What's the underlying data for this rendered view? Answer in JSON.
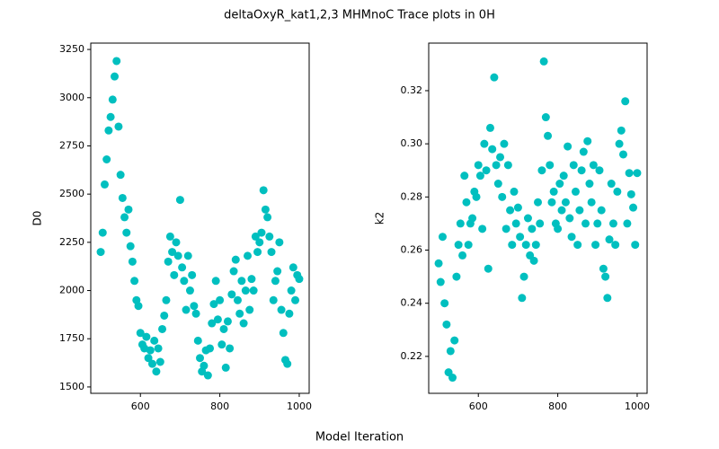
{
  "title": "deltaOxyR_kat1,2,3 MHMnoC Trace plots in 0H",
  "xlabel": "Model Iteration",
  "chart_data": [
    {
      "type": "scatter",
      "ylabel": "D0",
      "color": "#00bfbf",
      "xlim": [
        475,
        1025
      ],
      "ylim": [
        1467,
        3283
      ],
      "xticks": [
        600,
        800,
        1000
      ],
      "yticks": [
        1500,
        1750,
        2000,
        2250,
        2500,
        2750,
        3000,
        3250
      ],
      "x": [
        500,
        505,
        510,
        515,
        520,
        525,
        530,
        535,
        540,
        545,
        550,
        555,
        560,
        565,
        570,
        575,
        580,
        585,
        590,
        595,
        600,
        605,
        610,
        615,
        620,
        625,
        630,
        635,
        640,
        645,
        650,
        655,
        660,
        665,
        670,
        675,
        680,
        685,
        690,
        695,
        700,
        705,
        710,
        715,
        720,
        725,
        730,
        735,
        740,
        745,
        750,
        755,
        760,
        765,
        770,
        775,
        780,
        785,
        790,
        795,
        800,
        805,
        810,
        815,
        820,
        825,
        830,
        835,
        840,
        845,
        850,
        855,
        860,
        865,
        870,
        875,
        880,
        885,
        890,
        895,
        900,
        905,
        910,
        915,
        920,
        925,
        930,
        935,
        940,
        945,
        950,
        955,
        960,
        965,
        970,
        975,
        980,
        985,
        990,
        995,
        1000
      ],
      "values": [
        2200,
        2300,
        2550,
        2680,
        2830,
        2900,
        2990,
        3110,
        3190,
        2850,
        2600,
        2480,
        2380,
        2300,
        2420,
        2230,
        2150,
        2050,
        1950,
        1920,
        1780,
        1720,
        1700,
        1760,
        1650,
        1690,
        1620,
        1740,
        1580,
        1700,
        1630,
        1800,
        1870,
        1950,
        2150,
        2280,
        2200,
        2080,
        2250,
        2180,
        2470,
        2120,
        2050,
        1900,
        2180,
        2000,
        2080,
        1920,
        1880,
        1740,
        1650,
        1580,
        1610,
        1690,
        1560,
        1700,
        1830,
        1930,
        2050,
        1850,
        1950,
        1720,
        1800,
        1600,
        1840,
        1700,
        1980,
        2100,
        2160,
        1950,
        1880,
        2050,
        1830,
        2000,
        2180,
        1900,
        2060,
        2000,
        2280,
        2200,
        2250,
        2300,
        2520,
        2420,
        2380,
        2280,
        2200,
        1950,
        2050,
        2100,
        2250,
        1900,
        1780,
        1640,
        1620,
        1880,
        2000,
        2120,
        1950,
        2080,
        2060
      ]
    },
    {
      "type": "scatter",
      "ylabel": "k2",
      "color": "#00bfbf",
      "xlim": [
        475,
        1025
      ],
      "ylim": [
        0.2061,
        0.3379
      ],
      "xticks": [
        600,
        800,
        1000
      ],
      "yticks": [
        0.22,
        0.24,
        0.26,
        0.28,
        {
          "value": 0.3,
          "label": "0.30"
        },
        0.32
      ],
      "x": [
        500,
        505,
        510,
        515,
        520,
        525,
        530,
        535,
        540,
        545,
        550,
        555,
        560,
        565,
        570,
        575,
        580,
        585,
        590,
        595,
        600,
        605,
        610,
        615,
        620,
        625,
        630,
        635,
        640,
        645,
        650,
        655,
        660,
        665,
        670,
        675,
        680,
        685,
        690,
        695,
        700,
        705,
        710,
        715,
        720,
        725,
        730,
        735,
        740,
        745,
        750,
        755,
        760,
        765,
        770,
        775,
        780,
        785,
        790,
        795,
        800,
        805,
        810,
        815,
        820,
        825,
        830,
        835,
        840,
        845,
        850,
        855,
        860,
        865,
        870,
        875,
        880,
        885,
        890,
        895,
        900,
        905,
        910,
        915,
        920,
        925,
        930,
        935,
        940,
        945,
        950,
        955,
        960,
        965,
        970,
        975,
        980,
        985,
        990,
        995,
        1000
      ],
      "values": [
        0.255,
        0.248,
        0.265,
        0.24,
        0.232,
        0.214,
        0.222,
        0.212,
        0.226,
        0.25,
        0.262,
        0.27,
        0.258,
        0.288,
        0.278,
        0.262,
        0.27,
        0.272,
        0.282,
        0.28,
        0.292,
        0.288,
        0.268,
        0.3,
        0.29,
        0.253,
        0.306,
        0.298,
        0.325,
        0.292,
        0.285,
        0.295,
        0.28,
        0.3,
        0.268,
        0.292,
        0.275,
        0.262,
        0.282,
        0.27,
        0.276,
        0.265,
        0.242,
        0.25,
        0.262,
        0.272,
        0.258,
        0.268,
        0.256,
        0.262,
        0.278,
        0.27,
        0.29,
        0.331,
        0.31,
        0.303,
        0.292,
        0.278,
        0.282,
        0.27,
        0.268,
        0.285,
        0.275,
        0.288,
        0.278,
        0.299,
        0.272,
        0.265,
        0.292,
        0.282,
        0.262,
        0.275,
        0.29,
        0.297,
        0.27,
        0.301,
        0.285,
        0.278,
        0.292,
        0.262,
        0.27,
        0.29,
        0.275,
        0.253,
        0.25,
        0.242,
        0.264,
        0.285,
        0.27,
        0.262,
        0.282,
        0.3,
        0.305,
        0.296,
        0.316,
        0.27,
        0.289,
        0.281,
        0.276,
        0.262,
        0.289
      ]
    }
  ]
}
